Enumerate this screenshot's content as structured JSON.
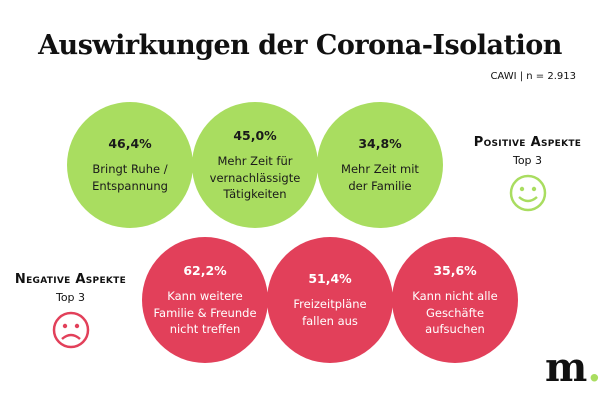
{
  "title": "Auswirkungen der Corona-Isolation",
  "meta": "CAWI | n = 2.913",
  "colors": {
    "positive": "#a9dd60",
    "negative": "#e2405a"
  },
  "positive": {
    "heading": "Positive Aspekte",
    "sub": "Top 3",
    "icon": "smiley-happy-icon",
    "items": [
      {
        "value": "46,4%",
        "label": "Bringt Ruhe /\nEntspannung"
      },
      {
        "value": "45,0%",
        "label": "Mehr Zeit für\nvernachlässigte\nTätigkeiten"
      },
      {
        "value": "34,8%",
        "label": "Mehr Zeit mit\nder Familie"
      }
    ]
  },
  "negative": {
    "heading": "Negative Aspekte",
    "sub": "Top 3",
    "icon": "smiley-sad-icon",
    "items": [
      {
        "value": "62,2%",
        "label": "Kann weitere\nFamilie & Freunde\nnicht treffen"
      },
      {
        "value": "51,4%",
        "label": "Freizeitpläne\nfallen aus"
      },
      {
        "value": "35,6%",
        "label": "Kann nicht alle\nGeschäfte\naufsuchen"
      }
    ]
  },
  "logo": {
    "text": "m",
    "dot": "."
  }
}
